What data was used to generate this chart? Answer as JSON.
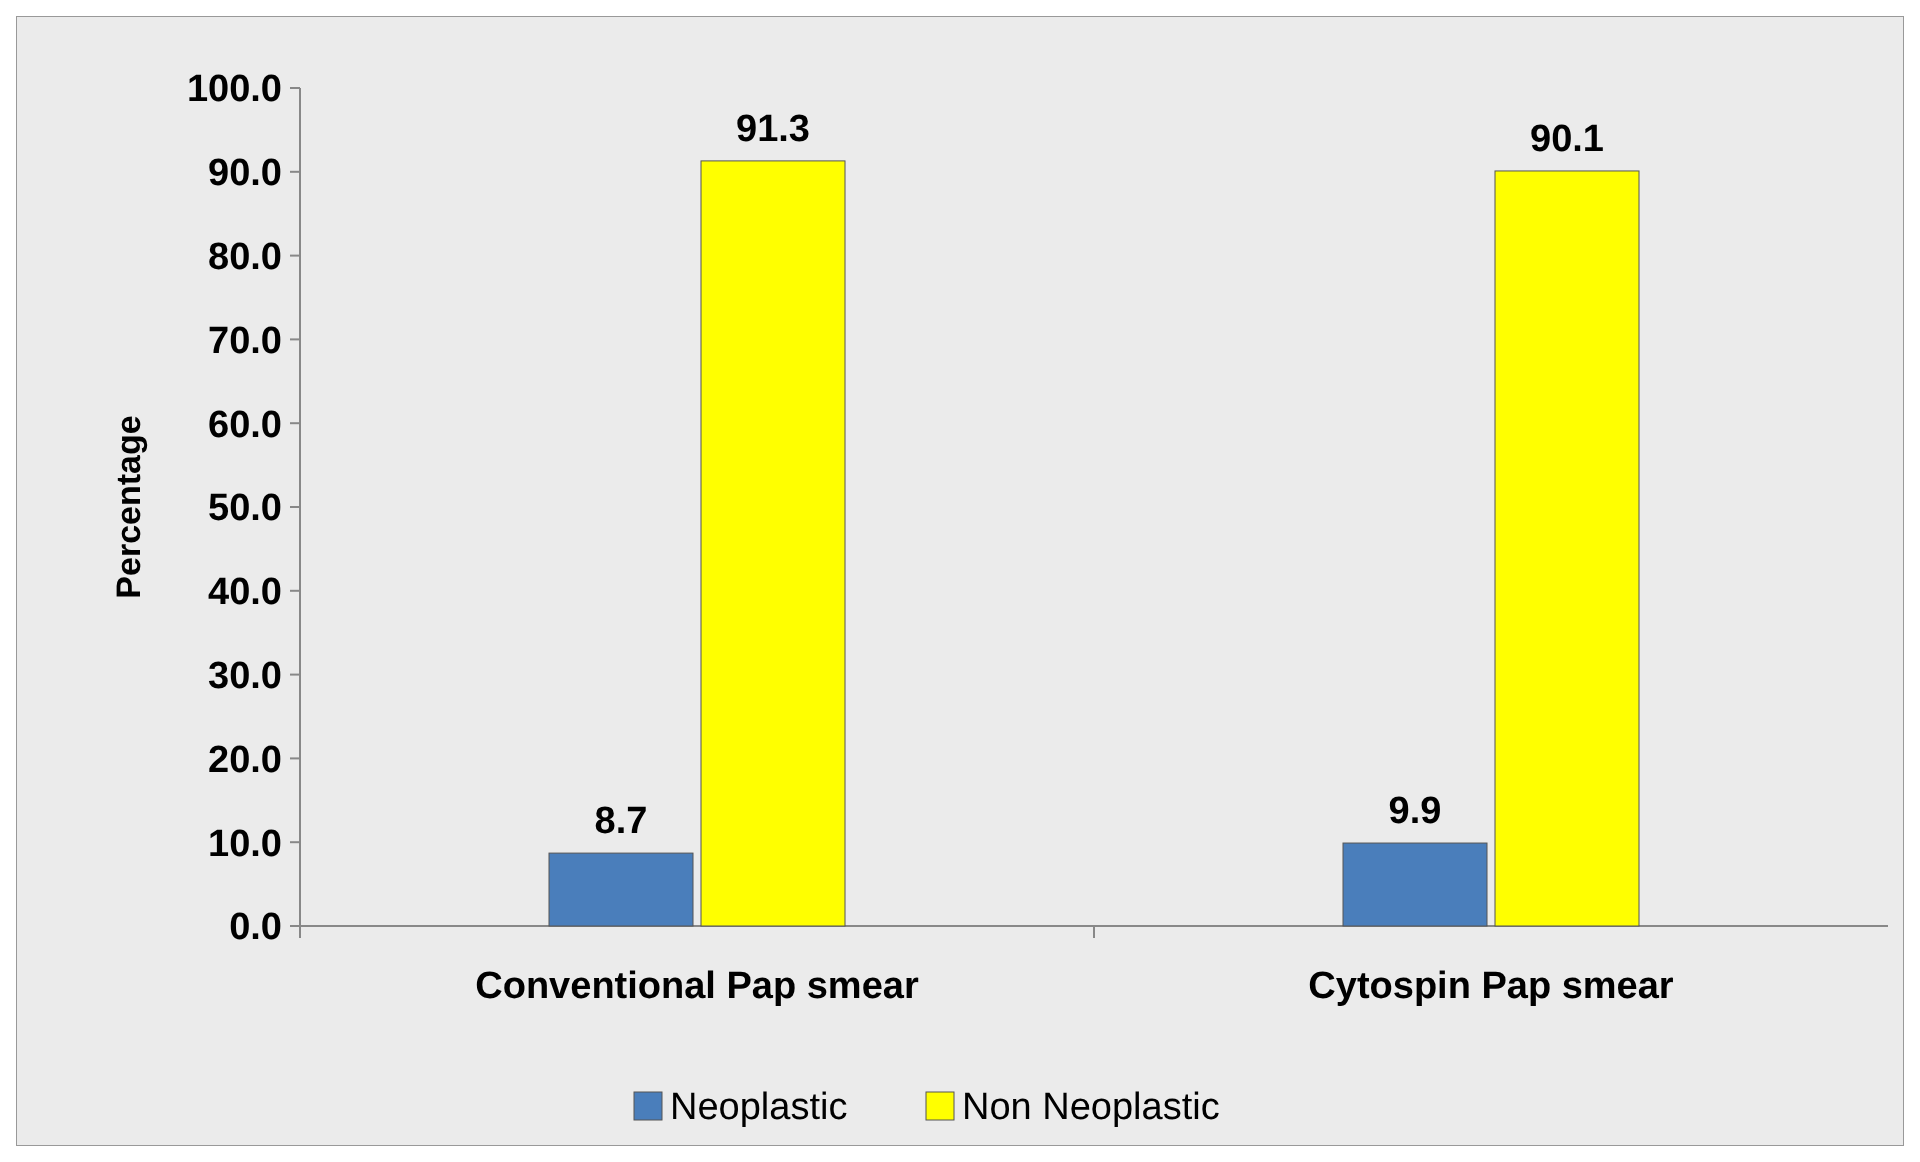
{
  "chart_data": {
    "type": "bar",
    "ylabel": "Percentage",
    "categories": [
      "Conventional Pap smear",
      "Cytospin Pap smear"
    ],
    "series": [
      {
        "name": "Neoplastic",
        "color": "#4a7ebb",
        "values": [
          8.7,
          9.9
        ]
      },
      {
        "name": "Non Neoplastic",
        "color": "#ffff00",
        "values": [
          91.3,
          90.1
        ]
      }
    ],
    "ylim": [
      0,
      100
    ],
    "yticks": [
      {
        "value": 0,
        "label": "0.0"
      },
      {
        "value": 10,
        "label": "10.0"
      },
      {
        "value": 20,
        "label": "20.0"
      },
      {
        "value": 30,
        "label": "30.0"
      },
      {
        "value": 40,
        "label": "40.0"
      },
      {
        "value": 50,
        "label": "50.0"
      },
      {
        "value": 60,
        "label": "60.0"
      },
      {
        "value": 70,
        "label": "70.0"
      },
      {
        "value": 80,
        "label": "80.0"
      },
      {
        "value": 90,
        "label": "90.0"
      },
      {
        "value": 100,
        "label": "100.0"
      }
    ],
    "data_labels": true,
    "legend": "bottom",
    "grid": false
  }
}
